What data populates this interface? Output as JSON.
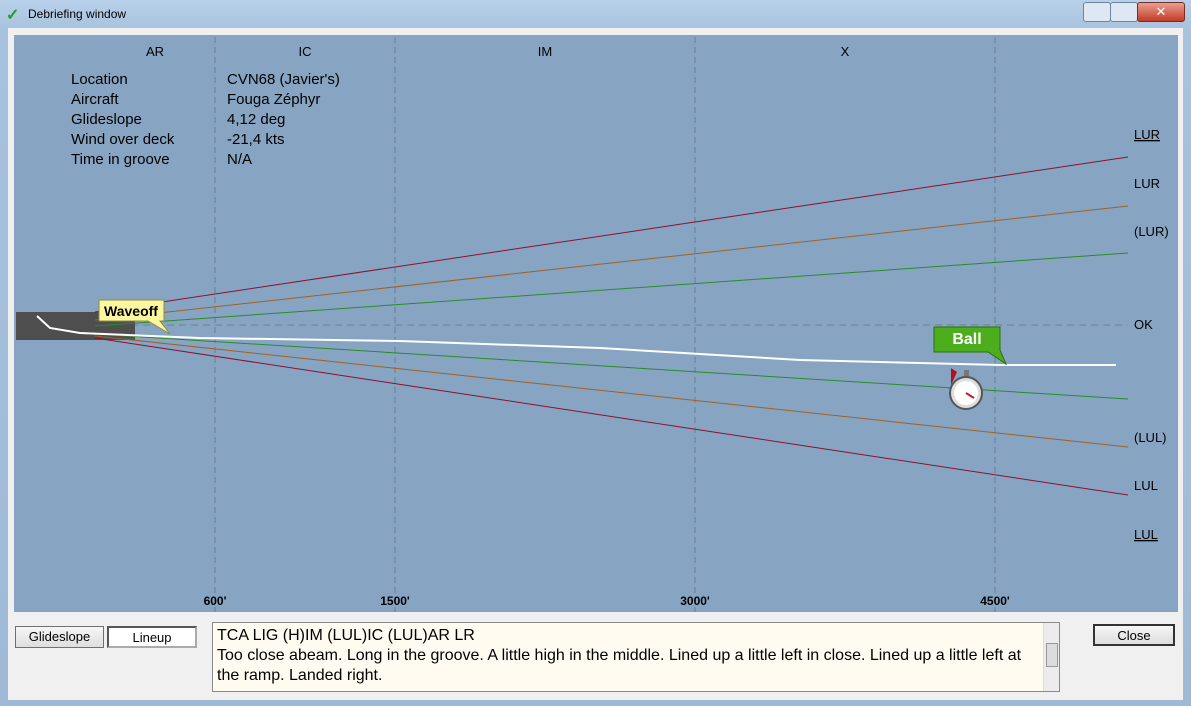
{
  "window": {
    "title": "Debriefing window"
  },
  "columns": [
    "AR",
    "IC",
    "IM",
    "X"
  ],
  "info": [
    {
      "label": "Location",
      "value": "CVN68 (Javier's)"
    },
    {
      "label": "Aircraft",
      "value": "Fouga Zéphyr"
    },
    {
      "label": "Glideslope",
      "value": "4,12 deg"
    },
    {
      "label": "Wind over deck",
      "value": "-21,4 kts"
    },
    {
      "label": "Time in groove",
      "value": "N/A"
    }
  ],
  "lineup_labels": [
    "LUR",
    "LUR",
    "(LUR)",
    "OK",
    "(LUL)",
    "LUL",
    "LUL"
  ],
  "distances": [
    "600'",
    "1500'",
    "3000'",
    "4500'"
  ],
  "callouts": {
    "waveoff": "Waveoff",
    "ball": "Ball"
  },
  "buttons": {
    "glideslope": "Glideslope",
    "lineup": "Lineup",
    "close": "Close"
  },
  "comments": {
    "grade": "TCA LIG (H)IM (LUL)IC (LUL)AR LR",
    "text": "Too close abeam. Long in the groove. A little high in the middle. Lined up a little left in close. Lined up a little left at the ramp. Landed right."
  }
}
